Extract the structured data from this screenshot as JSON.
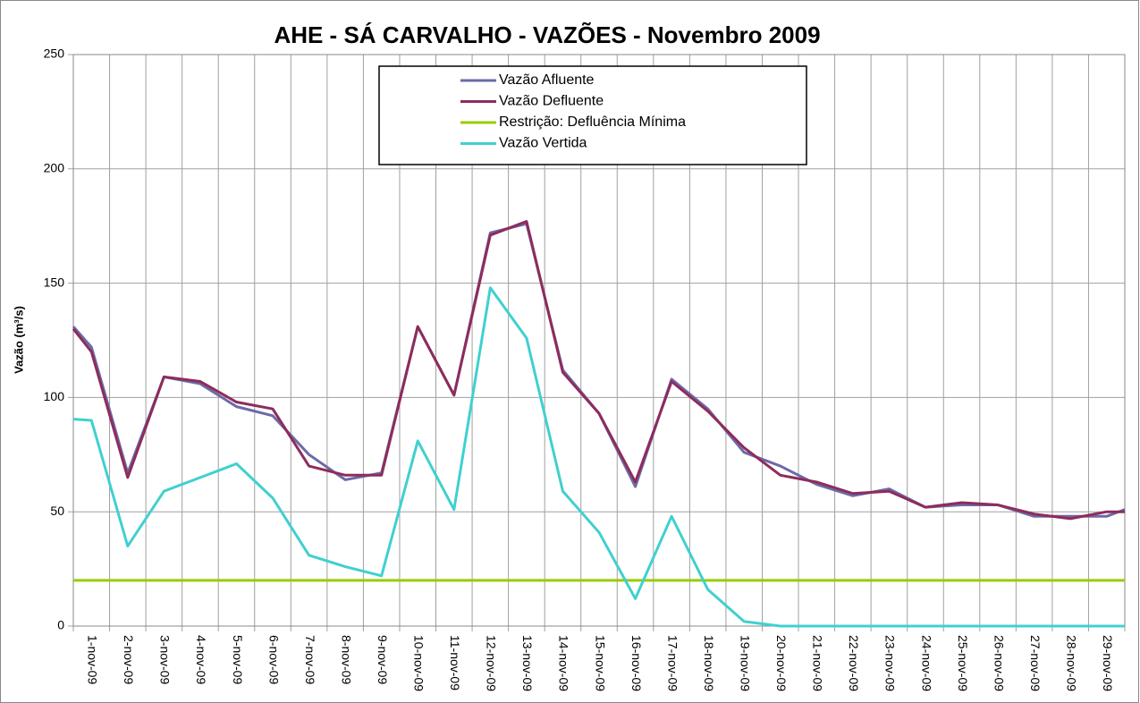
{
  "chart_data": {
    "type": "line",
    "title": "AHE - SÁ CARVALHO - VAZÕES - Novembro 2009",
    "y_label": "Vazão (m³/s)",
    "categories": [
      null,
      "1-nov-09",
      "2-nov-09",
      "3-nov-09",
      "4-nov-09",
      "5-nov-09",
      "6-nov-09",
      "7-nov-09",
      "8-nov-09",
      "9-nov-09",
      "10-nov-09",
      "11-nov-09",
      "12-nov-09",
      "13-nov-09",
      "14-nov-09",
      "15-nov-09",
      "16-nov-09",
      "17-nov-09",
      "18-nov-09",
      "19-nov-09",
      "20-nov-09",
      "21-nov-09",
      "22-nov-09",
      "23-nov-09",
      "24-nov-09",
      "25-nov-09",
      "26-nov-09",
      "27-nov-09",
      "28-nov-09",
      "29-nov-09",
      null
    ],
    "series": [
      {
        "name": "Vazão Afluente",
        "color": "#6b6ba8",
        "values": [
          131,
          122,
          67,
          109,
          106,
          96,
          92,
          75,
          64,
          67,
          131,
          101,
          172,
          176,
          112,
          93,
          61,
          108,
          95,
          76,
          70,
          62,
          57,
          60,
          52,
          53,
          53,
          48,
          48,
          48,
          51
        ]
      },
      {
        "name": "Vazão Defluente",
        "color": "#8e2c5c",
        "values": [
          130,
          120,
          65,
          109,
          107,
          98,
          95,
          70,
          66,
          66,
          131,
          101,
          171,
          177,
          111,
          93,
          63,
          107,
          94,
          78,
          66,
          63,
          58,
          59,
          52,
          54,
          53,
          49,
          47,
          50,
          50
        ]
      },
      {
        "name": "Restrição: Defluência Mínima",
        "color": "#99cc00",
        "values": [
          20,
          20,
          20,
          20,
          20,
          20,
          20,
          20,
          20,
          20,
          20,
          20,
          20,
          20,
          20,
          20,
          20,
          20,
          20,
          20,
          20,
          20,
          20,
          20,
          20,
          20,
          20,
          20,
          20,
          20,
          20
        ]
      },
      {
        "name": "Vazão Vertida",
        "color": "#40d0d0",
        "values": [
          90.5,
          90,
          35,
          59,
          65,
          71,
          56,
          31,
          26,
          22,
          81,
          51,
          148,
          126,
          59,
          41,
          12,
          48,
          16,
          2,
          0,
          0,
          0,
          0,
          0,
          0,
          0,
          0,
          0,
          0,
          0
        ]
      }
    ],
    "ylim": [
      0,
      250
    ],
    "yticks": [
      0,
      50,
      100,
      150,
      200,
      250
    ],
    "grid": true
  }
}
